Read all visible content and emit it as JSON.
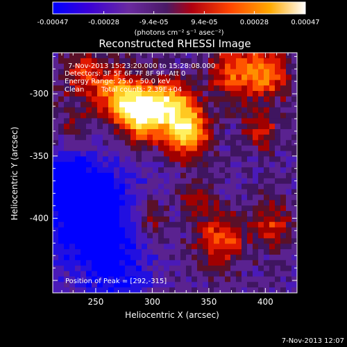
{
  "chart_data": {
    "type": "heatmap",
    "title": "Reconstructed RHESSI Image",
    "xlabel": "Heliocentric X (arcsec)",
    "ylabel": "Heliocentric Y (arcsec)",
    "xlim": [
      212,
      428
    ],
    "ylim": [
      -460,
      -267
    ],
    "x_ticks": [
      250,
      300,
      350,
      400
    ],
    "y_ticks": [
      -300,
      -350,
      -400
    ],
    "colorbar": {
      "label": "(photons cm⁻² s⁻¹ asec⁻²)",
      "range": [
        -0.00047,
        0.00047
      ],
      "ticks": [
        "-0.00047",
        "-0.00028",
        "-9.4e-05",
        "9.4e-05",
        "0.00028",
        "0.00047"
      ],
      "colors": [
        "#0000ff",
        "#4400cc",
        "#6a2aa0",
        "#4a1a66",
        "#ff2200",
        "#ff8800",
        "#ffdd22",
        "#ffffff"
      ]
    },
    "annotations": [
      "7-Nov-2013 15:23:20.000 to 15:28:08.000",
      "Detectors: 3F 5F 6F 7F 8F 9F, Att 0",
      "Energy Range: 25.0 - 50.0 keV",
      "Clean",
      "Total counts: 2.39E+04"
    ],
    "peak_label": "Position of Peak = [292,-315]",
    "peak": [
      292,
      -315
    ],
    "grid": false
  },
  "footer": {
    "timestamp": "7-Nov-2013 12:07"
  }
}
